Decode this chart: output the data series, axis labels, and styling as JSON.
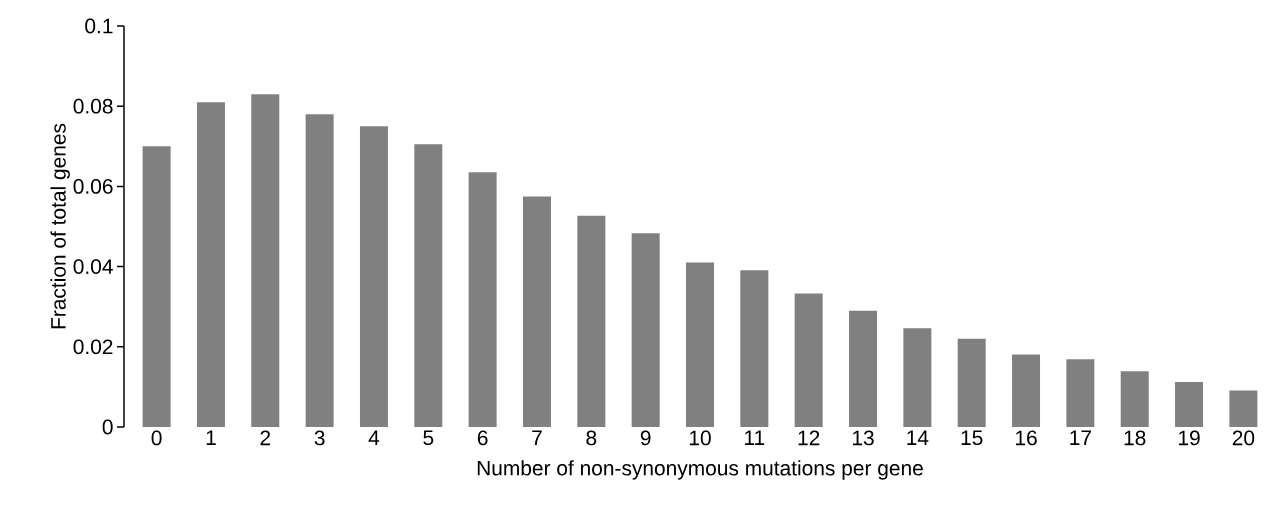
{
  "chart_data": {
    "type": "bar",
    "xlabel": "Number of non-synonymous mutations per gene",
    "ylabel": "Fraction of total genes",
    "categories": [
      "0",
      "1",
      "2",
      "3",
      "4",
      "5",
      "6",
      "7",
      "8",
      "9",
      "10",
      "11",
      "12",
      "13",
      "14",
      "15",
      "16",
      "17",
      "18",
      "19",
      "20"
    ],
    "values": [
      0.07,
      0.081,
      0.083,
      0.078,
      0.075,
      0.0705,
      0.0635,
      0.0575,
      0.0527,
      0.0483,
      0.041,
      0.0391,
      0.0333,
      0.029,
      0.0246,
      0.022,
      0.0181,
      0.0169,
      0.0139,
      0.0112,
      0.0091
    ],
    "color": "#808080",
    "ylim": [
      0,
      0.1
    ],
    "yticks": [
      0,
      0.02,
      0.04,
      0.06,
      0.08,
      0.1
    ],
    "grid": false
  }
}
